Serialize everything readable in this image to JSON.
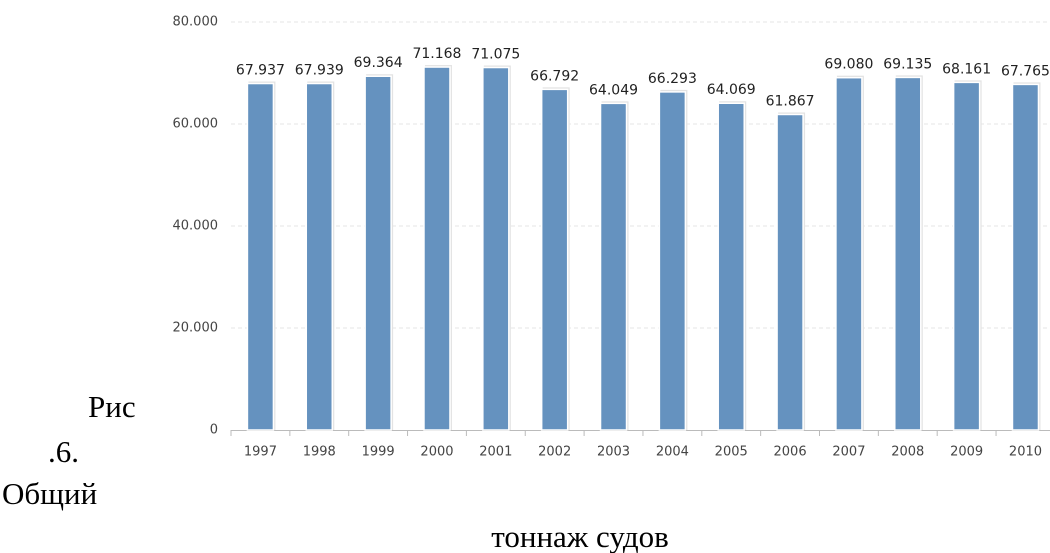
{
  "chart_data": {
    "type": "bar",
    "caption": [
      "Рис",
      ".6.",
      "Общий",
      "тоннаж судов"
    ],
    "categories": [
      "1997",
      "1998",
      "1999",
      "2000",
      "2001",
      "2002",
      "2003",
      "2004",
      "2005",
      "2006",
      "2007",
      "2008",
      "2009",
      "2010"
    ],
    "values": [
      67937,
      67939,
      69364,
      71168,
      71075,
      66792,
      64049,
      66293,
      64069,
      61867,
      69080,
      69135,
      68161,
      67765
    ],
    "value_labels": [
      "67.937",
      "67.939",
      "69.364",
      "71.168",
      "71.075",
      "66.792",
      "64.049",
      "66.293",
      "64.069",
      "61.867",
      "69.080",
      "69.135",
      "68.161",
      "67.765"
    ],
    "color": "#6592bf",
    "ylim": [
      0,
      80000
    ],
    "yticks": [
      0,
      {
        "value": 20000,
        "label": "20.000"
      },
      {
        "value": 40000,
        "label": "40.000"
      },
      {
        "value": 60000,
        "label": "60.000"
      },
      {
        "value": 80000,
        "label": "80.000"
      }
    ],
    "grid": true
  }
}
